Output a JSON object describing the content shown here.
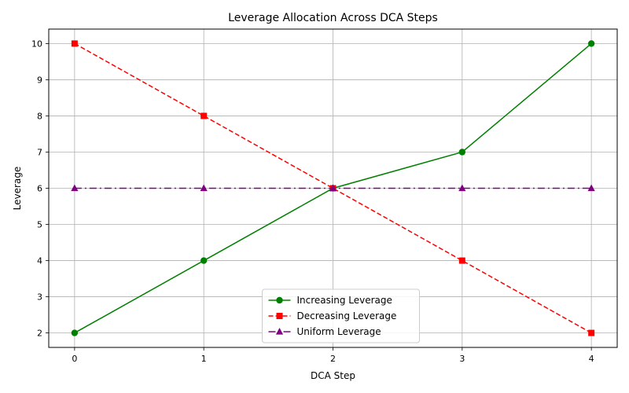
{
  "chart_data": {
    "type": "line",
    "title": "Leverage Allocation Across DCA Steps",
    "xlabel": "DCA Step",
    "ylabel": "Leverage",
    "x": [
      0,
      1,
      2,
      3,
      4
    ],
    "xlim": [
      -0.2,
      4.2
    ],
    "ylim": [
      1.6,
      10.4
    ],
    "xticks": [
      0,
      1,
      2,
      3,
      4
    ],
    "yticks": [
      2,
      3,
      4,
      5,
      6,
      7,
      8,
      9,
      10
    ],
    "grid": true,
    "legend_position": "bottom-center",
    "series": [
      {
        "name": "Increasing Leverage",
        "values": [
          2,
          4,
          6,
          7,
          10
        ],
        "color": "#008000",
        "line_style": "solid",
        "marker": "circle"
      },
      {
        "name": "Decreasing Leverage",
        "values": [
          10,
          8,
          6,
          4,
          2
        ],
        "color": "#ff0000",
        "line_style": "dashed",
        "marker": "square"
      },
      {
        "name": "Uniform Leverage",
        "values": [
          6,
          6,
          6,
          6,
          6
        ],
        "color": "#800080",
        "line_style": "dashdot",
        "marker": "triangle"
      }
    ]
  }
}
